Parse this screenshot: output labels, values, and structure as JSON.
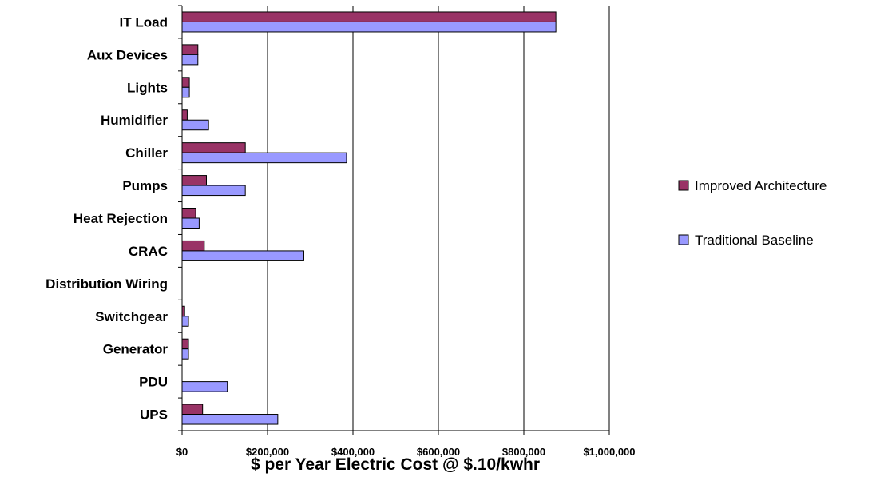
{
  "chart_data": {
    "type": "bar",
    "orientation": "horizontal",
    "categories": [
      "IT Load",
      "Aux Devices",
      "Lights",
      "Humidifier",
      "Chiller",
      "Pumps",
      "Heat Rejection",
      "CRAC",
      "Distribution Wiring",
      "Switchgear",
      "Generator",
      "PDU",
      "UPS"
    ],
    "series": [
      {
        "name": "Improved Architecture",
        "color": "#993366",
        "values": [
          875000,
          37000,
          17000,
          12000,
          148000,
          57000,
          32000,
          52000,
          0,
          6000,
          15000,
          0,
          48000
        ]
      },
      {
        "name": "Traditional Baseline",
        "color": "#9999ff",
        "values": [
          875000,
          37000,
          17000,
          62000,
          385000,
          148000,
          40000,
          285000,
          0,
          15000,
          15000,
          106000,
          224000
        ]
      }
    ],
    "xlabel": "$ per Year Electric Cost @ $.10/kwhr",
    "ylabel": "",
    "xlim": [
      0,
      1000000
    ],
    "xticks": [
      0,
      200000,
      400000,
      600000,
      800000,
      1000000
    ],
    "xtick_labels": [
      "$0",
      "$200,000",
      "$400,000",
      "$600,000",
      "$800,000",
      "$1,000,000"
    ],
    "grid": "vertical",
    "legend": "right"
  }
}
